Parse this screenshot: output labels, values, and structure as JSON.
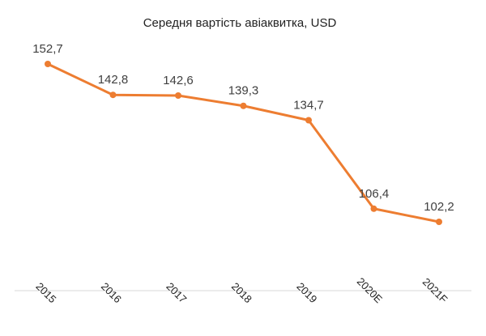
{
  "chart_data": {
    "type": "line",
    "title": "Середня вартість авіаквитка, USD",
    "categories": [
      "2015",
      "2016",
      "2017",
      "2018",
      "2019",
      "2020E",
      "2021F"
    ],
    "series": [
      {
        "values": [
          152.7,
          142.8,
          142.6,
          139.3,
          134.7,
          106.4,
          102.2
        ],
        "labels": [
          "152,7",
          "142,8",
          "142,6",
          "139,3",
          "134,7",
          "106,4",
          "102,2"
        ],
        "color": "#ED7D31"
      }
    ],
    "xlabel": "",
    "ylabel": "",
    "grid": false,
    "legend": "none"
  }
}
